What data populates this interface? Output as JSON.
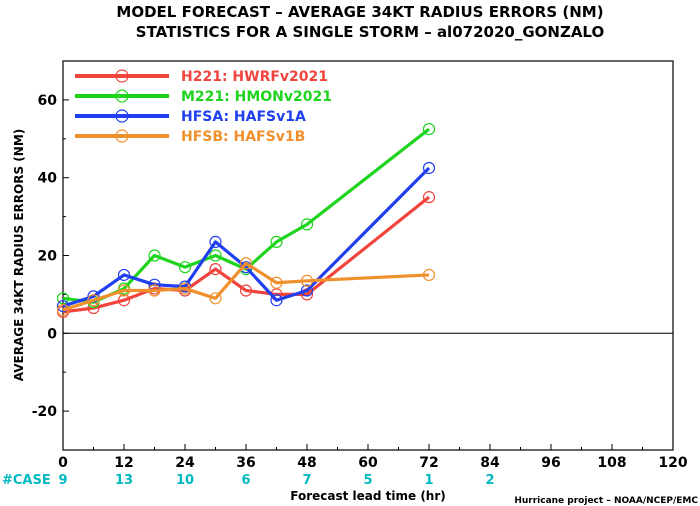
{
  "title_line1": "MODEL FORECAST – AVERAGE 34KT RADIUS ERRORS (NM)",
  "title_line2": "STATISTICS FOR A SINGLE STORM – al072020_GONZALO",
  "case_label": "#CASE",
  "credit": "Hurricane project – NOAA/NCEP/EMC",
  "chart_data": {
    "type": "line",
    "title": "MODEL FORECAST – AVERAGE 34KT RADIUS ERRORS (NM)",
    "subtitle": "STATISTICS FOR A SINGLE STORM – al072020_GONZALO",
    "xlabel": "Forecast lead time (hr)",
    "ylabel": "AVERAGE 34KT RADIUS ERRORS (NM)",
    "xlim": [
      0,
      120
    ],
    "ylim": [
      -30,
      70
    ],
    "xticks": [
      0,
      12,
      24,
      36,
      48,
      60,
      72,
      84,
      96,
      108,
      120
    ],
    "yticks": [
      -20,
      0,
      20,
      40,
      60
    ],
    "grid": false,
    "zero_line": true,
    "legend_position": "top-left",
    "cases": [
      {
        "x": 0,
        "label": "9"
      },
      {
        "x": 12,
        "label": "13"
      },
      {
        "x": 24,
        "label": "10"
      },
      {
        "x": 36,
        "label": "6"
      },
      {
        "x": 48,
        "label": "7"
      },
      {
        "x": 60,
        "label": "5"
      },
      {
        "x": 72,
        "label": "1"
      },
      {
        "x": 84,
        "label": "2"
      }
    ],
    "series": [
      {
        "name": "H221: HWRFv2021",
        "color": "#f0443c",
        "x": [
          0,
          6,
          12,
          18,
          24,
          30,
          36,
          42,
          48,
          72
        ],
        "y": [
          5.5,
          6.5,
          8.5,
          11.5,
          11,
          16.5,
          11,
          10,
          10,
          35
        ]
      },
      {
        "name": "M221: HMONv2021",
        "color": "#1ed41e",
        "x": [
          0,
          6,
          12,
          18,
          24,
          30,
          36,
          42,
          48,
          72
        ],
        "y": [
          9,
          8,
          11.5,
          20,
          17,
          20,
          16.5,
          23.5,
          28,
          52.5
        ]
      },
      {
        "name": "HFSA: HAFSv1A",
        "color": "#2040f0",
        "x": [
          0,
          6,
          12,
          18,
          24,
          30,
          36,
          42,
          48,
          72
        ],
        "y": [
          7,
          9.5,
          15,
          12.5,
          12,
          23.5,
          17,
          8.5,
          11,
          42.5
        ]
      },
      {
        "name": "HFSB: HAFSv1B",
        "color": "#f0902c",
        "x": [
          0,
          6,
          12,
          18,
          24,
          30,
          36,
          42,
          48,
          72
        ],
        "y": [
          6,
          8.5,
          11,
          11,
          11.5,
          9,
          18,
          13,
          13.5,
          15
        ]
      }
    ]
  }
}
